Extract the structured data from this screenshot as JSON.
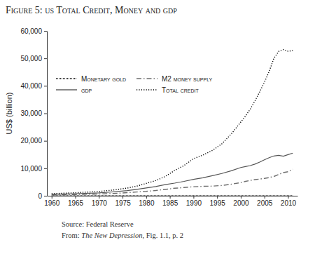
{
  "chart_data": {
    "type": "line",
    "title": "Figure 5: us Total Credit, Money and gdp",
    "y_label": "US$ (billion)",
    "source": "Source: Federal Reserve",
    "citation": [
      "From: ",
      "The New Depression",
      ", Fig. 1.1, p. 2"
    ],
    "x": [
      1960,
      1962,
      1964,
      1966,
      1968,
      1970,
      1972,
      1974,
      1976,
      1978,
      1980,
      1982,
      1984,
      1986,
      1988,
      1990,
      1992,
      1994,
      1996,
      1998,
      2000,
      2001,
      2002,
      2003,
      2004,
      2005,
      2006,
      2007,
      2008,
      2009,
      2010,
      2011
    ],
    "series": [
      {
        "name": "Monetary gold",
        "color": "#000000",
        "line_style": "dense-dotted",
        "values": [
          18,
          16,
          15,
          13,
          11,
          11,
          10,
          12,
          11,
          11,
          11,
          11,
          11,
          11,
          11,
          11,
          11,
          11,
          11,
          11,
          11,
          11,
          11,
          11,
          11,
          11,
          11,
          11,
          11,
          11,
          11,
          11
        ]
      },
      {
        "name": "M2 money supply",
        "color": "#6e6e6e",
        "line_style": "dashdot",
        "values": [
          310,
          360,
          420,
          480,
          570,
          630,
          800,
          900,
          1150,
          1370,
          1600,
          1910,
          2310,
          2730,
          2990,
          3280,
          3430,
          3500,
          3740,
          4210,
          4800,
          5240,
          5580,
          5870,
          6080,
          6330,
          6620,
          7020,
          7720,
          8440,
          8760,
          9620
        ]
      },
      {
        "name": "gdp",
        "color": "#555555",
        "line_style": "solid",
        "values": [
          540,
          600,
          690,
          810,
          940,
          1070,
          1280,
          1550,
          1880,
          2350,
          2860,
          3340,
          4040,
          4590,
          5240,
          5980,
          6540,
          7310,
          8100,
          9090,
          10280,
          10620,
          10980,
          11510,
          12270,
          13090,
          13860,
          14480,
          14720,
          14420,
          14960,
          15520
        ]
      },
      {
        "name": "Total credit",
        "color": "#000000",
        "line_style": "dotted",
        "values": [
          780,
          900,
          1050,
          1200,
          1380,
          1580,
          1900,
          2300,
          2800,
          3500,
          4500,
          5500,
          7000,
          9200,
          11000,
          13500,
          14800,
          16500,
          18900,
          22500,
          26800,
          29000,
          31500,
          34500,
          37800,
          41300,
          45200,
          50000,
          52500,
          53200,
          52600,
          52800
        ]
      }
    ],
    "xlim": [
      1959,
      2012
    ],
    "xticks": [
      1960,
      1965,
      1970,
      1975,
      1980,
      1985,
      1990,
      1995,
      2000,
      2005,
      2010
    ],
    "ylim": [
      0,
      60000
    ],
    "yticks": [
      0,
      {
        "value": 10000,
        "label": "10,000"
      },
      {
        "value": 20000,
        "label": "20,000"
      },
      {
        "value": 30000,
        "label": "30,000"
      },
      {
        "value": 40000,
        "label": "40,000"
      },
      {
        "value": 50000,
        "label": "50,000"
      },
      {
        "value": 60000,
        "label": "60,000"
      }
    ],
    "grid": false,
    "legend": "top-left"
  }
}
